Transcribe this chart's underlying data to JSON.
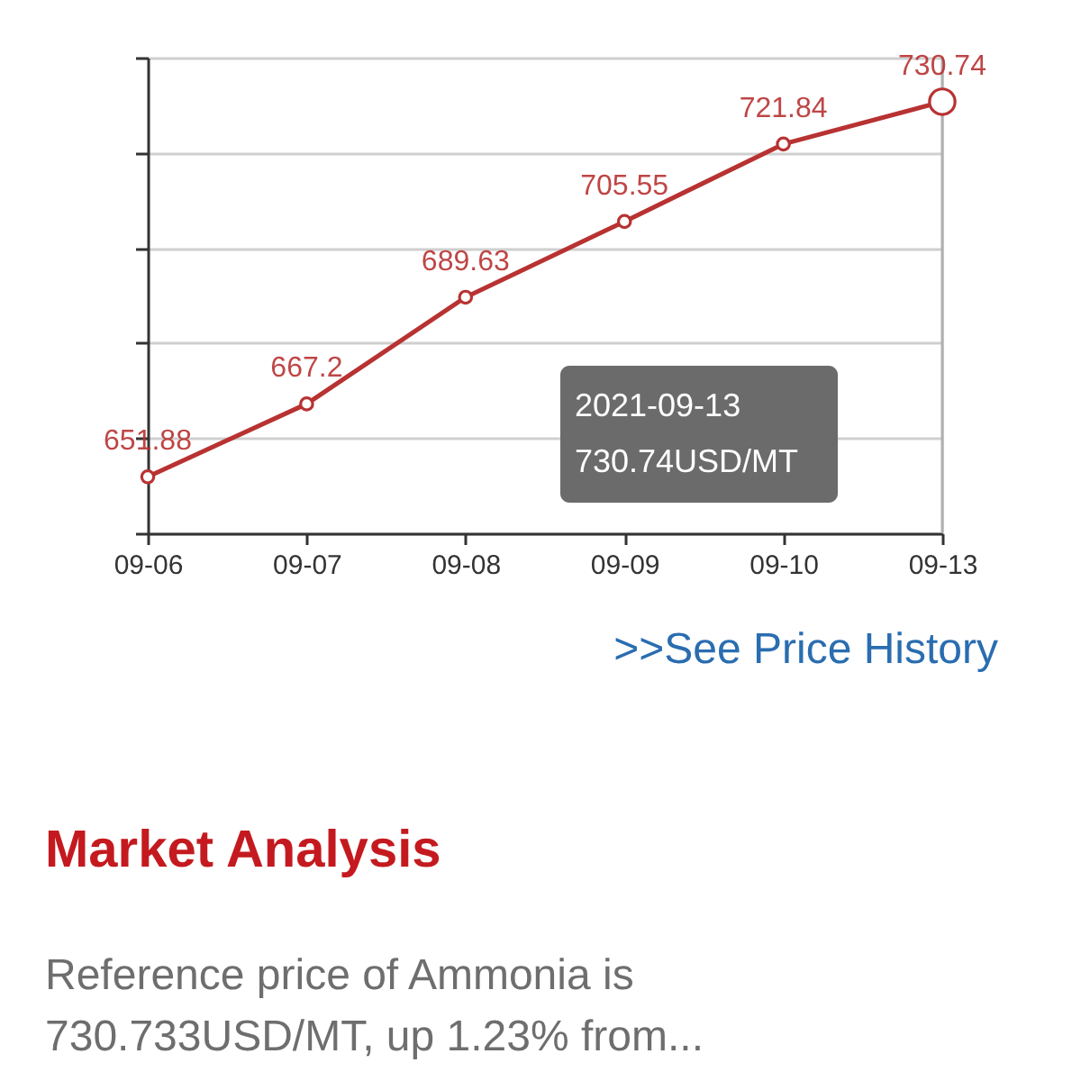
{
  "chart_data": {
    "type": "line",
    "categories": [
      "09-06",
      "09-07",
      "09-08",
      "09-09",
      "09-10",
      "09-13"
    ],
    "series": [
      {
        "color": "#b83232",
        "values": [
          651.88,
          667.2,
          689.63,
          705.55,
          721.84,
          730.74
        ]
      }
    ],
    "ylim": [
      640,
      740
    ],
    "yticks": [
      {
        "value": 640,
        "label": null
      },
      {
        "value": 660,
        "label": null
      },
      {
        "value": 680,
        "label": null
      },
      {
        "value": 700,
        "label": null
      },
      {
        "value": 720,
        "label": null
      },
      {
        "value": 740,
        "label": null
      }
    ],
    "grid": "y",
    "tick_labels": "x",
    "marker": "circle",
    "line_style": "solid",
    "data_labels": true,
    "ref_lines": [
      {
        "axis": "x",
        "value": "09-13",
        "color": "#b0b0b0"
      }
    ],
    "annotations": [
      "2021-09-13",
      "730.74USD/MT",
      ">>See Price History",
      "Market Analysis",
      "Reference price of Ammonia is 730.733USD/MT, up 1.23% from..."
    ]
  }
}
